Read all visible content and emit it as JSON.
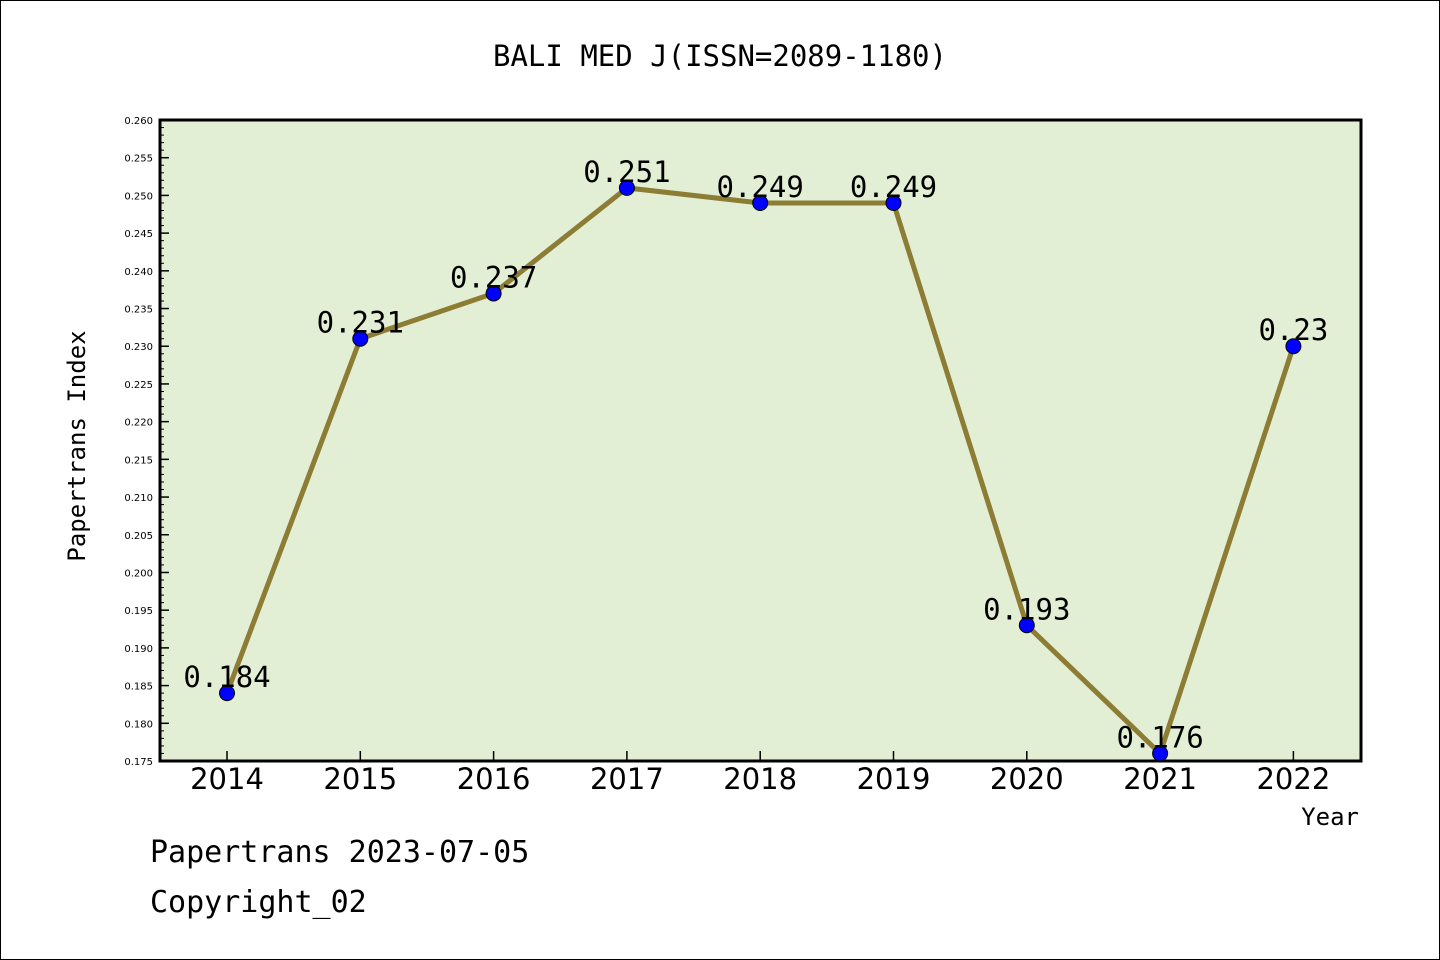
{
  "chart_data": {
    "type": "line",
    "title": "BALI MED J(ISSN=2089-1180)",
    "xlabel": "Year",
    "ylabel": "Papertrans Index",
    "categories": [
      "2014",
      "2015",
      "2016",
      "2017",
      "2018",
      "2019",
      "2020",
      "2021",
      "2022"
    ],
    "series": [
      {
        "values": [
          0.184,
          0.231,
          0.237,
          0.251,
          0.249,
          0.249,
          0.193,
          0.176,
          0.23
        ],
        "labels": [
          "0.184",
          "0.231",
          "0.237",
          "0.251",
          "0.249",
          "0.249",
          "0.193",
          "0.176",
          "0.23"
        ]
      }
    ],
    "ylim": [
      0.175,
      0.26
    ],
    "yticks": [
      "0.175",
      "0.180",
      "0.185",
      "0.190",
      "0.195",
      "0.200",
      "0.205",
      "0.210",
      "0.215",
      "0.220",
      "0.225",
      "0.230",
      "0.235",
      "0.240",
      "0.245",
      "0.250",
      "0.255",
      "0.260"
    ],
    "grid": false,
    "legend": "none"
  },
  "colors": {
    "plot_background": "#e2efd5",
    "line": "#8c7c34",
    "marker": "#0000ff",
    "axis": "#000000"
  },
  "footer": {
    "date_text": "Papertrans 2023-07-05",
    "copyright_text": "Copyright_02"
  }
}
